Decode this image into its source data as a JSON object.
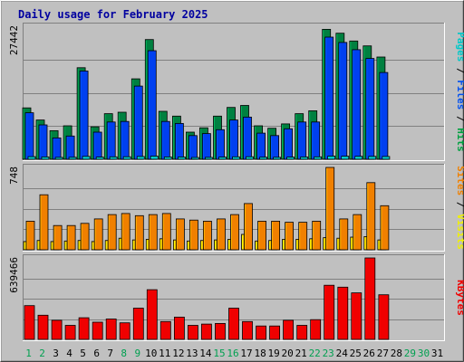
{
  "chart_data": {
    "type": "bar",
    "title": "Daily usage for February 2025",
    "categories": [
      "1",
      "2",
      "3",
      "4",
      "5",
      "6",
      "7",
      "8",
      "9",
      "10",
      "11",
      "12",
      "13",
      "14",
      "15",
      "16",
      "17",
      "18",
      "19",
      "20",
      "21",
      "22",
      "23",
      "24",
      "25",
      "26",
      "27",
      "28",
      "29",
      "30",
      "31"
    ],
    "weekend_days": [
      1,
      2,
      8,
      9,
      15,
      16,
      22,
      23,
      29,
      30
    ],
    "panels": [
      {
        "id": "hits-files-pages",
        "ytick_label": "27442",
        "ymax": 27442,
        "axis_label_parts": [
          {
            "text": "Pages",
            "color": "#00c8c8"
          },
          {
            "text": " / ",
            "color": "#000000"
          },
          {
            "text": "Files",
            "color": "#0050f0"
          },
          {
            "text": " / ",
            "color": "#000000"
          },
          {
            "text": "Hits",
            "color": "#00a040"
          }
        ],
        "series": [
          {
            "name": "Hits",
            "color": "#008040",
            "values": [
              10600,
              8100,
              5900,
              6900,
              18900,
              6700,
              9400,
              9700,
              16600,
              24700,
              9900,
              8900,
              5600,
              6500,
              8900,
              10700,
              11100,
              6900,
              6400,
              7300,
              9400,
              10000,
              26800,
              26000,
              24400,
              23400,
              21100,
              null,
              null,
              null,
              null
            ]
          },
          {
            "name": "Files",
            "color": "#0040f0",
            "values": [
              9600,
              7100,
              4400,
              4800,
              18200,
              5600,
              7700,
              7800,
              15100,
              22400,
              7800,
              7400,
              4900,
              5300,
              6100,
              8100,
              8700,
              5400,
              4900,
              6300,
              7700,
              7700,
              25200,
              24100,
              22600,
              20800,
              17900,
              null,
              null,
              null,
              null
            ]
          },
          {
            "name": "Pages",
            "color": "#00c8c8",
            "values": [
              550,
              480,
              400,
              420,
              600,
              450,
              500,
              520,
              580,
              650,
              480,
              470,
              380,
              400,
              450,
              500,
              520,
              430,
              410,
              440,
              480,
              500,
              650,
              640,
              620,
              600,
              580,
              null,
              null,
              null,
              null
            ]
          }
        ]
      },
      {
        "id": "visits-sites",
        "ytick_label": "748",
        "ymax": 748,
        "axis_label_parts": [
          {
            "text": "Sites",
            "color": "#f08000"
          },
          {
            "text": " / ",
            "color": "#000000"
          },
          {
            "text": "Visits",
            "color": "#f0f000"
          }
        ],
        "series": [
          {
            "name": "Visits",
            "color": "#f0c000",
            "values": [
              75,
              85,
              75,
              80,
              85,
              75,
              85,
              105,
              90,
              95,
              100,
              90,
              80,
              85,
              90,
              95,
              140,
              80,
              85,
              95,
              95,
              100,
              110,
              105,
              115,
              120,
              90,
              null,
              null,
              null,
              null
            ]
          },
          {
            "name": "Sites",
            "color": "#f08000",
            "values": [
              260,
              500,
              220,
              220,
              240,
              280,
              320,
              330,
              310,
              320,
              330,
              280,
              270,
              260,
              280,
              320,
              420,
              260,
              260,
              250,
              250,
              260,
              748,
              280,
              320,
              610,
              400,
              null,
              null,
              null,
              null
            ]
          }
        ]
      },
      {
        "id": "kbytes",
        "ytick_label": "639466",
        "ymax": 639466,
        "axis_label_parts": [
          {
            "text": "KBytes",
            "color": "#f00000"
          }
        ],
        "series": [
          {
            "name": "KBytes",
            "color": "#f00000",
            "values": [
              265000,
              190000,
              150000,
              110000,
              170000,
              135000,
              160000,
              130000,
              245000,
              390000,
              140000,
              175000,
              110000,
              120000,
              125000,
              245000,
              140000,
              105000,
              105000,
              150000,
              110000,
              155000,
              425000,
              410000,
              365000,
              639466,
              350000,
              null,
              null,
              null,
              null
            ]
          }
        ]
      }
    ]
  }
}
